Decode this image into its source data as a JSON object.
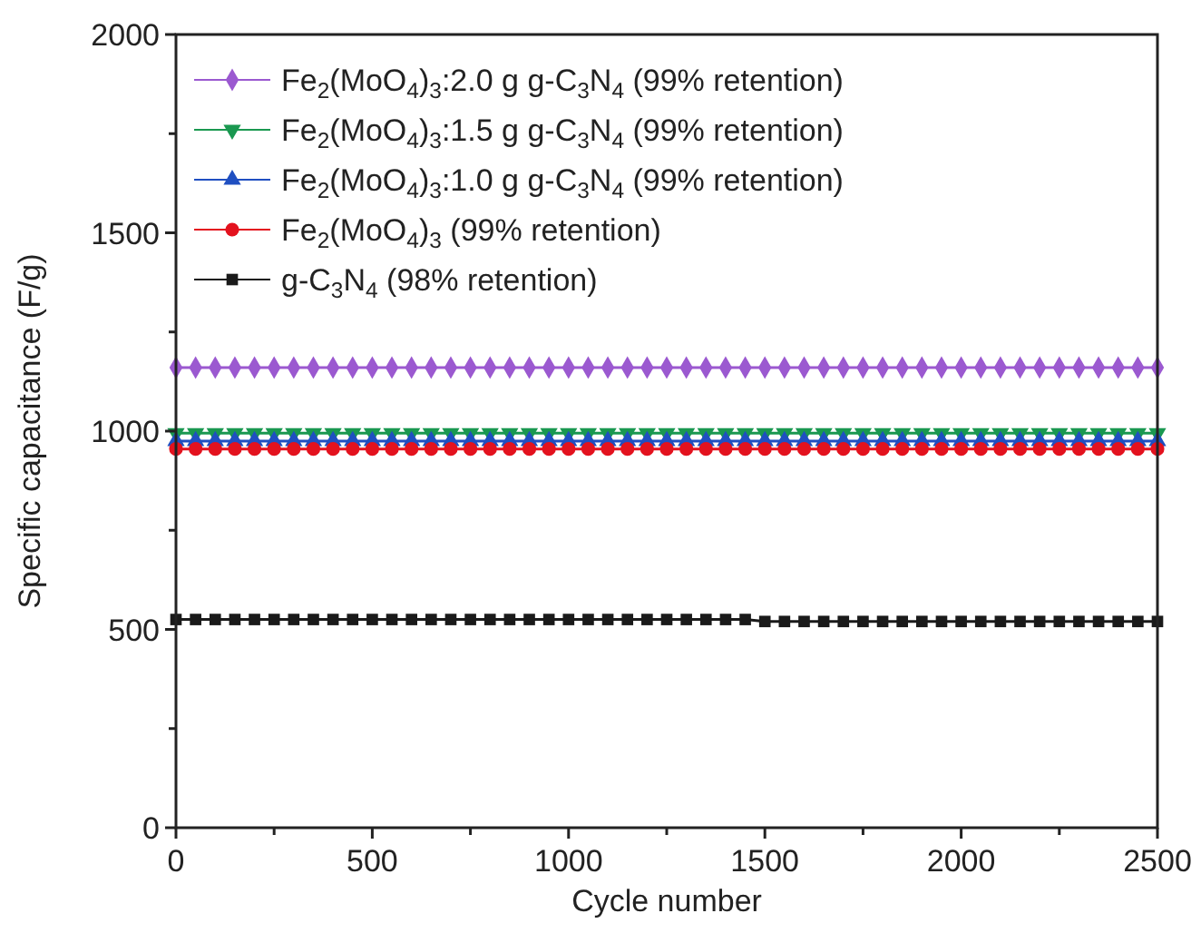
{
  "chart_data": {
    "type": "line",
    "xlabel": "Cycle number",
    "ylabel": "Specific capacitance (F/g)",
    "x": [
      0,
      50,
      100,
      150,
      200,
      250,
      300,
      350,
      400,
      450,
      500,
      550,
      600,
      650,
      700,
      750,
      800,
      850,
      900,
      950,
      1000,
      1050,
      1100,
      1150,
      1200,
      1250,
      1300,
      1350,
      1400,
      1450,
      1500,
      1550,
      1600,
      1650,
      1700,
      1750,
      1800,
      1850,
      1900,
      1950,
      2000,
      2050,
      2100,
      2150,
      2200,
      2250,
      2300,
      2350,
      2400,
      2450,
      2500
    ],
    "xlim": [
      0,
      2500
    ],
    "xticks": [
      0,
      {
        "value": 250,
        "label": null
      },
      500,
      {
        "value": 750,
        "label": null
      },
      1000,
      {
        "value": 1250,
        "label": null
      },
      1500,
      {
        "value": 1750,
        "label": null
      },
      2000,
      {
        "value": 2250,
        "label": null
      },
      2500
    ],
    "ylim": [
      0,
      2000
    ],
    "yticks": [
      0,
      {
        "value": 250,
        "label": null
      },
      500,
      {
        "value": 750,
        "label": null
      },
      1000,
      {
        "value": 1250,
        "label": null
      },
      1500,
      {
        "value": 1750,
        "label": null
      },
      2000
    ],
    "legend": "top left",
    "grid": false,
    "series": [
      {
        "name": "Fe$_{2}$(MoO$_{4}$)$_{3}$:2.0 g g-C$_{3}$N$_{4}$ (99% retention)",
        "color": "#9b59d0",
        "marker": "diamond",
        "values": [
          1160,
          1160,
          1160,
          1160,
          1160,
          1160,
          1160,
          1160,
          1160,
          1160,
          1160,
          1160,
          1160,
          1160,
          1160,
          1160,
          1160,
          1160,
          1160,
          1160,
          1160,
          1160,
          1160,
          1160,
          1160,
          1160,
          1160,
          1160,
          1160,
          1160,
          1160,
          1160,
          1160,
          1160,
          1160,
          1160,
          1160,
          1160,
          1160,
          1160,
          1160,
          1160,
          1160,
          1160,
          1160,
          1160,
          1160,
          1160,
          1160,
          1160,
          1160
        ]
      },
      {
        "name": "Fe$_{2}$(MoO$_{4}$)$_{3}$:1.5 g g-C$_{3}$N$_{4}$ (99% retention)",
        "color": "#1a9850",
        "marker": "triangle-down",
        "values": [
          995,
          995,
          995,
          995,
          995,
          995,
          995,
          995,
          995,
          995,
          995,
          995,
          995,
          995,
          995,
          995,
          995,
          995,
          995,
          995,
          995,
          995,
          995,
          995,
          995,
          995,
          995,
          995,
          995,
          995,
          995,
          995,
          995,
          995,
          995,
          995,
          995,
          995,
          995,
          995,
          995,
          995,
          995,
          995,
          995,
          995,
          995,
          995,
          995,
          995,
          995
        ]
      },
      {
        "name": "Fe$_{2}$(MoO$_{4}$)$_{3}$:1.0 g g-C$_{3}$N$_{4}$ (99% retention)",
        "color": "#1f4fc1",
        "marker": "triangle",
        "values": [
          975,
          975,
          975,
          975,
          975,
          975,
          975,
          975,
          975,
          975,
          975,
          975,
          975,
          975,
          975,
          975,
          975,
          975,
          975,
          975,
          975,
          975,
          975,
          975,
          975,
          975,
          975,
          975,
          975,
          975,
          975,
          975,
          975,
          975,
          975,
          975,
          975,
          975,
          975,
          975,
          975,
          975,
          975,
          975,
          975,
          975,
          975,
          975,
          975,
          975,
          975
        ]
      },
      {
        "name": "Fe$_{2}$(MoO$_{4}$)$_{3}$ (99% retention)",
        "color": "#e3121e",
        "marker": "circle",
        "values": [
          955,
          955,
          955,
          955,
          955,
          955,
          955,
          955,
          955,
          955,
          955,
          955,
          955,
          955,
          955,
          955,
          955,
          955,
          955,
          955,
          955,
          955,
          955,
          955,
          955,
          955,
          955,
          955,
          955,
          955,
          955,
          955,
          955,
          955,
          955,
          955,
          955,
          955,
          955,
          955,
          955,
          955,
          955,
          955,
          955,
          955,
          955,
          955,
          955,
          955,
          955
        ]
      },
      {
        "name": "g-C$_{3}$N$_{4}$ (98% retention)",
        "color": "#1a1a1a",
        "marker": "square",
        "values": [
          525,
          525,
          525,
          525,
          525,
          525,
          525,
          525,
          525,
          525,
          525,
          525,
          525,
          525,
          525,
          525,
          525,
          525,
          525,
          525,
          525,
          525,
          525,
          525,
          525,
          525,
          525,
          525,
          525,
          525,
          520,
          520,
          520,
          520,
          520,
          520,
          520,
          520,
          520,
          520,
          520,
          520,
          520,
          520,
          520,
          520,
          520,
          520,
          520,
          520,
          520
        ]
      }
    ]
  }
}
